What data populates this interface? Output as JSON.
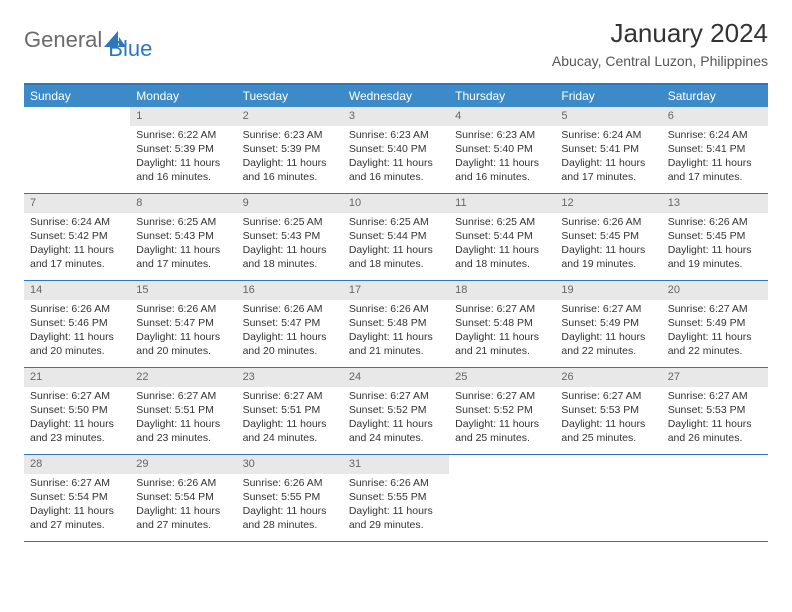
{
  "logo": {
    "text1": "General",
    "text2": "Blue"
  },
  "title": "January 2024",
  "location": "Abucay, Central Luzon, Philippines",
  "colors": {
    "header_bg": "#3d8ac9",
    "border": "#2d78bd",
    "daynum_bg": "#e8e8e8",
    "text": "#333333",
    "logo_gray": "#6b6b6b"
  },
  "day_headers": [
    "Sunday",
    "Monday",
    "Tuesday",
    "Wednesday",
    "Thursday",
    "Friday",
    "Saturday"
  ],
  "weeks": [
    [
      {
        "n": "",
        "sr": "",
        "ss": "",
        "dl": ""
      },
      {
        "n": "1",
        "sr": "6:22 AM",
        "ss": "5:39 PM",
        "dl": "11 hours and 16 minutes."
      },
      {
        "n": "2",
        "sr": "6:23 AM",
        "ss": "5:39 PM",
        "dl": "11 hours and 16 minutes."
      },
      {
        "n": "3",
        "sr": "6:23 AM",
        "ss": "5:40 PM",
        "dl": "11 hours and 16 minutes."
      },
      {
        "n": "4",
        "sr": "6:23 AM",
        "ss": "5:40 PM",
        "dl": "11 hours and 16 minutes."
      },
      {
        "n": "5",
        "sr": "6:24 AM",
        "ss": "5:41 PM",
        "dl": "11 hours and 17 minutes."
      },
      {
        "n": "6",
        "sr": "6:24 AM",
        "ss": "5:41 PM",
        "dl": "11 hours and 17 minutes."
      }
    ],
    [
      {
        "n": "7",
        "sr": "6:24 AM",
        "ss": "5:42 PM",
        "dl": "11 hours and 17 minutes."
      },
      {
        "n": "8",
        "sr": "6:25 AM",
        "ss": "5:43 PM",
        "dl": "11 hours and 17 minutes."
      },
      {
        "n": "9",
        "sr": "6:25 AM",
        "ss": "5:43 PM",
        "dl": "11 hours and 18 minutes."
      },
      {
        "n": "10",
        "sr": "6:25 AM",
        "ss": "5:44 PM",
        "dl": "11 hours and 18 minutes."
      },
      {
        "n": "11",
        "sr": "6:25 AM",
        "ss": "5:44 PM",
        "dl": "11 hours and 18 minutes."
      },
      {
        "n": "12",
        "sr": "6:26 AM",
        "ss": "5:45 PM",
        "dl": "11 hours and 19 minutes."
      },
      {
        "n": "13",
        "sr": "6:26 AM",
        "ss": "5:45 PM",
        "dl": "11 hours and 19 minutes."
      }
    ],
    [
      {
        "n": "14",
        "sr": "6:26 AM",
        "ss": "5:46 PM",
        "dl": "11 hours and 20 minutes."
      },
      {
        "n": "15",
        "sr": "6:26 AM",
        "ss": "5:47 PM",
        "dl": "11 hours and 20 minutes."
      },
      {
        "n": "16",
        "sr": "6:26 AM",
        "ss": "5:47 PM",
        "dl": "11 hours and 20 minutes."
      },
      {
        "n": "17",
        "sr": "6:26 AM",
        "ss": "5:48 PM",
        "dl": "11 hours and 21 minutes."
      },
      {
        "n": "18",
        "sr": "6:27 AM",
        "ss": "5:48 PM",
        "dl": "11 hours and 21 minutes."
      },
      {
        "n": "19",
        "sr": "6:27 AM",
        "ss": "5:49 PM",
        "dl": "11 hours and 22 minutes."
      },
      {
        "n": "20",
        "sr": "6:27 AM",
        "ss": "5:49 PM",
        "dl": "11 hours and 22 minutes."
      }
    ],
    [
      {
        "n": "21",
        "sr": "6:27 AM",
        "ss": "5:50 PM",
        "dl": "11 hours and 23 minutes."
      },
      {
        "n": "22",
        "sr": "6:27 AM",
        "ss": "5:51 PM",
        "dl": "11 hours and 23 minutes."
      },
      {
        "n": "23",
        "sr": "6:27 AM",
        "ss": "5:51 PM",
        "dl": "11 hours and 24 minutes."
      },
      {
        "n": "24",
        "sr": "6:27 AM",
        "ss": "5:52 PM",
        "dl": "11 hours and 24 minutes."
      },
      {
        "n": "25",
        "sr": "6:27 AM",
        "ss": "5:52 PM",
        "dl": "11 hours and 25 minutes."
      },
      {
        "n": "26",
        "sr": "6:27 AM",
        "ss": "5:53 PM",
        "dl": "11 hours and 25 minutes."
      },
      {
        "n": "27",
        "sr": "6:27 AM",
        "ss": "5:53 PM",
        "dl": "11 hours and 26 minutes."
      }
    ],
    [
      {
        "n": "28",
        "sr": "6:27 AM",
        "ss": "5:54 PM",
        "dl": "11 hours and 27 minutes."
      },
      {
        "n": "29",
        "sr": "6:26 AM",
        "ss": "5:54 PM",
        "dl": "11 hours and 27 minutes."
      },
      {
        "n": "30",
        "sr": "6:26 AM",
        "ss": "5:55 PM",
        "dl": "11 hours and 28 minutes."
      },
      {
        "n": "31",
        "sr": "6:26 AM",
        "ss": "5:55 PM",
        "dl": "11 hours and 29 minutes."
      },
      {
        "n": "",
        "sr": "",
        "ss": "",
        "dl": ""
      },
      {
        "n": "",
        "sr": "",
        "ss": "",
        "dl": ""
      },
      {
        "n": "",
        "sr": "",
        "ss": "",
        "dl": ""
      }
    ]
  ],
  "labels": {
    "sunrise": "Sunrise: ",
    "sunset": "Sunset: ",
    "daylight": "Daylight: "
  }
}
